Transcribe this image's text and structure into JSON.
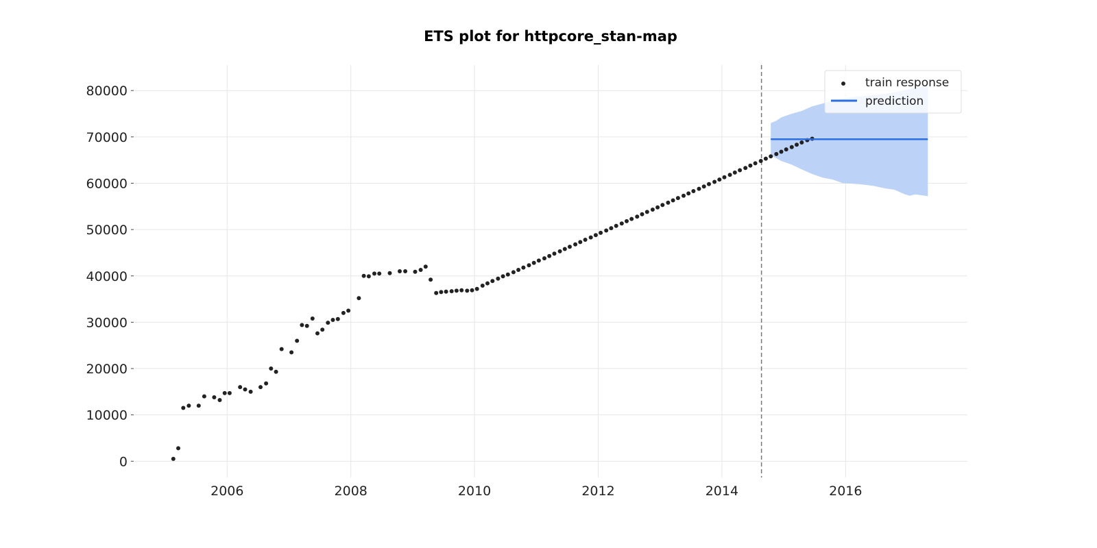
{
  "chart_data": {
    "type": "scatter",
    "title": "ETS plot for httpcore_stan-map",
    "xlabel": "",
    "ylabel": "",
    "xlim": [
      2004.5,
      2017.97
    ],
    "ylim": [
      -3500,
      85500
    ],
    "x_ticks": [
      {
        "value": 2006,
        "label": "2006"
      },
      {
        "value": 2008,
        "label": "2008"
      },
      {
        "value": 2010,
        "label": "2010"
      },
      {
        "value": 2012,
        "label": "2012"
      },
      {
        "value": 2014,
        "label": "2014"
      },
      {
        "value": 2016,
        "label": "2016"
      }
    ],
    "y_ticks": [
      {
        "value": 0,
        "label": "0"
      },
      {
        "value": 10000,
        "label": "10000"
      },
      {
        "value": 20000,
        "label": "20000"
      },
      {
        "value": 30000,
        "label": "30000"
      },
      {
        "value": 40000,
        "label": "40000"
      },
      {
        "value": 50000,
        "label": "50000"
      },
      {
        "value": 60000,
        "label": "60000"
      },
      {
        "value": 70000,
        "label": "70000"
      },
      {
        "value": 80000,
        "label": "80000"
      }
    ],
    "grid": true,
    "legend": {
      "placement": "top-right",
      "entries": [
        {
          "label": "train response",
          "kind": "marker"
        },
        {
          "label": "prediction",
          "kind": "line"
        }
      ]
    },
    "cutoff_x": 2014.64,
    "colors": {
      "train": "#222222",
      "prediction": "#2b6fe0",
      "interval": "#bcd2f7",
      "grid": "#e6e6e6",
      "cutoff": "#777777"
    },
    "series": [
      {
        "name": "train response",
        "type": "scatter",
        "points": [
          [
            2005.13,
            500
          ],
          [
            2005.21,
            2800
          ],
          [
            2005.29,
            11500
          ],
          [
            2005.38,
            12000
          ],
          [
            2005.54,
            12000
          ],
          [
            2005.63,
            14000
          ],
          [
            2005.79,
            13800
          ],
          [
            2005.88,
            13200
          ],
          [
            2005.96,
            14700
          ],
          [
            2006.04,
            14700
          ],
          [
            2006.21,
            16000
          ],
          [
            2006.29,
            15500
          ],
          [
            2006.38,
            15000
          ],
          [
            2006.54,
            16000
          ],
          [
            2006.63,
            16800
          ],
          [
            2006.71,
            20000
          ],
          [
            2006.79,
            19300
          ],
          [
            2006.88,
            24200
          ],
          [
            2007.04,
            23500
          ],
          [
            2007.13,
            26000
          ],
          [
            2007.21,
            29400
          ],
          [
            2007.29,
            29200
          ],
          [
            2007.38,
            30800
          ],
          [
            2007.46,
            27600
          ],
          [
            2007.54,
            28400
          ],
          [
            2007.63,
            29900
          ],
          [
            2007.71,
            30500
          ],
          [
            2007.79,
            30700
          ],
          [
            2007.88,
            32000
          ],
          [
            2007.96,
            32500
          ],
          [
            2008.13,
            35200
          ],
          [
            2008.21,
            40000
          ],
          [
            2008.29,
            39900
          ],
          [
            2008.38,
            40500
          ],
          [
            2008.46,
            40500
          ],
          [
            2008.63,
            40600
          ],
          [
            2008.79,
            41000
          ],
          [
            2008.88,
            41000
          ],
          [
            2009.04,
            40900
          ],
          [
            2009.13,
            41300
          ],
          [
            2009.21,
            42000
          ],
          [
            2009.29,
            39200
          ],
          [
            2009.38,
            36300
          ],
          [
            2009.46,
            36500
          ],
          [
            2009.54,
            36600
          ],
          [
            2009.63,
            36700
          ],
          [
            2009.71,
            36800
          ],
          [
            2009.79,
            36900
          ],
          [
            2009.88,
            36800
          ],
          [
            2009.96,
            36900
          ],
          [
            2010.04,
            37200
          ],
          [
            2010.13,
            37900
          ],
          [
            2010.21,
            38400
          ],
          [
            2010.29,
            38900
          ],
          [
            2010.38,
            39400
          ],
          [
            2010.46,
            39900
          ],
          [
            2010.54,
            40300
          ],
          [
            2010.63,
            40800
          ],
          [
            2010.71,
            41300
          ],
          [
            2010.79,
            41800
          ],
          [
            2010.88,
            42300
          ],
          [
            2010.96,
            42800
          ],
          [
            2011.04,
            43300
          ],
          [
            2011.13,
            43800
          ],
          [
            2011.21,
            44300
          ],
          [
            2011.29,
            44800
          ],
          [
            2011.38,
            45300
          ],
          [
            2011.46,
            45800
          ],
          [
            2011.54,
            46300
          ],
          [
            2011.63,
            46800
          ],
          [
            2011.71,
            47300
          ],
          [
            2011.79,
            47800
          ],
          [
            2011.88,
            48300
          ],
          [
            2011.96,
            48800
          ],
          [
            2012.04,
            49300
          ],
          [
            2012.13,
            49800
          ],
          [
            2012.21,
            50300
          ],
          [
            2012.29,
            50800
          ],
          [
            2012.38,
            51300
          ],
          [
            2012.46,
            51800
          ],
          [
            2012.54,
            52300
          ],
          [
            2012.63,
            52800
          ],
          [
            2012.71,
            53300
          ],
          [
            2012.79,
            53800
          ],
          [
            2012.88,
            54300
          ],
          [
            2012.96,
            54800
          ],
          [
            2013.04,
            55300
          ],
          [
            2013.13,
            55800
          ],
          [
            2013.21,
            56300
          ],
          [
            2013.29,
            56800
          ],
          [
            2013.38,
            57300
          ],
          [
            2013.46,
            57800
          ],
          [
            2013.54,
            58300
          ],
          [
            2013.63,
            58800
          ],
          [
            2013.71,
            59300
          ],
          [
            2013.79,
            59800
          ],
          [
            2013.88,
            60300
          ],
          [
            2013.96,
            60800
          ],
          [
            2014.04,
            61300
          ],
          [
            2014.13,
            61800
          ],
          [
            2014.21,
            62300
          ],
          [
            2014.29,
            62800
          ],
          [
            2014.38,
            63300
          ],
          [
            2014.46,
            63800
          ],
          [
            2014.54,
            64300
          ],
          [
            2014.63,
            64800
          ],
          [
            2014.71,
            65300
          ],
          [
            2014.79,
            65800
          ],
          [
            2014.88,
            66300
          ],
          [
            2014.96,
            66800
          ],
          [
            2015.04,
            67300
          ],
          [
            2015.13,
            67800
          ],
          [
            2015.21,
            68300
          ],
          [
            2015.29,
            68800
          ],
          [
            2015.38,
            69300
          ],
          [
            2015.46,
            69600
          ]
        ]
      },
      {
        "name": "prediction",
        "type": "line",
        "points": [
          [
            2014.79,
            69500
          ],
          [
            2017.33,
            69500
          ]
        ],
        "interval_upper": [
          [
            2014.79,
            73000
          ],
          [
            2014.88,
            73500
          ],
          [
            2014.96,
            74200
          ],
          [
            2015.13,
            75000
          ],
          [
            2015.29,
            75600
          ],
          [
            2015.46,
            76600
          ],
          [
            2015.63,
            77200
          ],
          [
            2015.79,
            77800
          ],
          [
            2015.96,
            78300
          ],
          [
            2016.13,
            78600
          ],
          [
            2016.29,
            78800
          ],
          [
            2016.46,
            79000
          ],
          [
            2016.63,
            79300
          ],
          [
            2016.79,
            79600
          ],
          [
            2016.96,
            80100
          ],
          [
            2017.13,
            80600
          ],
          [
            2017.33,
            81000
          ]
        ],
        "interval_lower": [
          [
            2014.79,
            66000
          ],
          [
            2014.88,
            65400
          ],
          [
            2014.96,
            64800
          ],
          [
            2015.13,
            64000
          ],
          [
            2015.29,
            63000
          ],
          [
            2015.46,
            62000
          ],
          [
            2015.63,
            61200
          ],
          [
            2015.79,
            60800
          ],
          [
            2015.96,
            60000
          ],
          [
            2016.13,
            59900
          ],
          [
            2016.29,
            59700
          ],
          [
            2016.46,
            59400
          ],
          [
            2016.63,
            58900
          ],
          [
            2016.79,
            58600
          ],
          [
            2016.96,
            57600
          ],
          [
            2017.04,
            57300
          ],
          [
            2017.13,
            57600
          ],
          [
            2017.33,
            57200
          ]
        ]
      }
    ]
  }
}
